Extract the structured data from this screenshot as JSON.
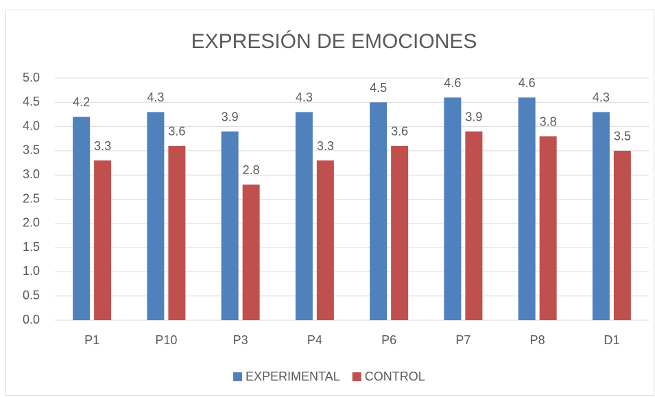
{
  "chart_data": {
    "type": "bar",
    "title": "EXPRESIÓN DE EMOCIONES",
    "categories": [
      "P1",
      "P10",
      "P3",
      "P4",
      "P6",
      "P7",
      "P8",
      "D1"
    ],
    "series": [
      {
        "name": "EXPERIMENTAL",
        "color": "#4f81bd",
        "values": [
          4.2,
          4.3,
          3.9,
          4.3,
          4.5,
          4.6,
          4.6,
          4.3
        ]
      },
      {
        "name": "CONTROL",
        "color": "#c0504d",
        "values": [
          3.3,
          3.6,
          2.8,
          3.3,
          3.6,
          3.9,
          3.8,
          3.5
        ]
      }
    ],
    "ylim": [
      0,
      5
    ],
    "yticks": [
      {
        "value": 0,
        "label": "0.0"
      },
      {
        "value": 0.5,
        "label": "0.5"
      },
      {
        "value": 1,
        "label": "1.0"
      },
      {
        "value": 1.5,
        "label": "1.5"
      },
      {
        "value": 2,
        "label": "2.0"
      },
      {
        "value": 2.5,
        "label": "2.5"
      },
      {
        "value": 3,
        "label": "3.0"
      },
      {
        "value": 3.5,
        "label": "3.5"
      },
      {
        "value": 4,
        "label": "4.0"
      },
      {
        "value": 4.5,
        "label": "4.5"
      },
      {
        "value": 5,
        "label": "5.0"
      }
    ],
    "grid": true,
    "legend": "bottom"
  }
}
